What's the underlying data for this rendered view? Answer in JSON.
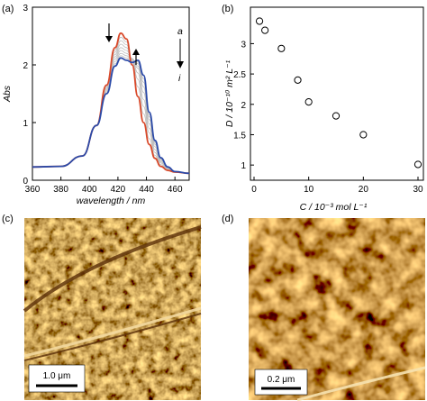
{
  "panel_labels": {
    "a": "(a)",
    "b": "(b)",
    "c": "(c)",
    "d": "(d)"
  },
  "chart_data": [
    {
      "panel": "(a)",
      "type": "line",
      "xlabel": "wavelength / nm",
      "ylabel": "Abs",
      "xlim": [
        360,
        470
      ],
      "ylim": [
        0,
        3
      ],
      "xticks": [
        360,
        380,
        400,
        420,
        440,
        460
      ],
      "yticks": [
        0,
        1,
        2,
        3
      ],
      "grid": false,
      "annotations": {
        "start": "a",
        "end": "i"
      },
      "series": [
        {
          "color": "#d94a2b",
          "x": [
            360,
            380,
            395,
            405,
            412,
            418,
            422,
            426,
            430,
            434,
            438,
            442,
            446,
            450,
            455,
            460,
            470
          ],
          "values": [
            0.23,
            0.24,
            0.42,
            0.95,
            1.65,
            2.3,
            2.55,
            2.45,
            2.0,
            1.45,
            1.0,
            0.62,
            0.38,
            0.24,
            0.17,
            0.14,
            0.12
          ]
        },
        {
          "color": "#bdbdbd",
          "x": [
            360,
            380,
            395,
            405,
            412,
            418,
            422,
            426,
            430,
            434,
            438,
            442,
            446,
            450,
            455,
            460,
            470
          ],
          "values": [
            0.23,
            0.24,
            0.42,
            0.95,
            1.63,
            2.26,
            2.48,
            2.4,
            2.05,
            1.62,
            1.15,
            0.72,
            0.43,
            0.27,
            0.18,
            0.14,
            0.12
          ]
        },
        {
          "color": "#bdbdbd",
          "x": [
            360,
            380,
            395,
            405,
            412,
            418,
            422,
            426,
            430,
            434,
            438,
            442,
            446,
            450,
            455,
            460,
            470
          ],
          "values": [
            0.23,
            0.24,
            0.42,
            0.95,
            1.61,
            2.22,
            2.42,
            2.35,
            2.08,
            1.75,
            1.28,
            0.82,
            0.48,
            0.3,
            0.19,
            0.15,
            0.12
          ]
        },
        {
          "color": "#bdbdbd",
          "x": [
            360,
            380,
            395,
            405,
            412,
            418,
            422,
            426,
            430,
            434,
            438,
            442,
            446,
            450,
            455,
            460,
            470
          ],
          "values": [
            0.23,
            0.24,
            0.42,
            0.95,
            1.59,
            2.18,
            2.36,
            2.3,
            2.1,
            1.86,
            1.4,
            0.9,
            0.53,
            0.32,
            0.2,
            0.15,
            0.12
          ]
        },
        {
          "color": "#bdbdbd",
          "x": [
            360,
            380,
            395,
            405,
            412,
            418,
            422,
            426,
            430,
            434,
            438,
            442,
            446,
            450,
            455,
            460,
            470
          ],
          "values": [
            0.23,
            0.24,
            0.42,
            0.95,
            1.57,
            2.14,
            2.3,
            2.25,
            2.11,
            1.94,
            1.52,
            0.98,
            0.58,
            0.34,
            0.21,
            0.15,
            0.12
          ]
        },
        {
          "color": "#bdbdbd",
          "x": [
            360,
            380,
            395,
            405,
            412,
            418,
            422,
            426,
            430,
            434,
            438,
            442,
            446,
            450,
            455,
            460,
            470
          ],
          "values": [
            0.23,
            0.24,
            0.42,
            0.95,
            1.55,
            2.1,
            2.25,
            2.2,
            2.1,
            1.98,
            1.62,
            1.05,
            0.62,
            0.36,
            0.22,
            0.15,
            0.12
          ]
        },
        {
          "color": "#bdbdbd",
          "x": [
            360,
            380,
            395,
            405,
            412,
            418,
            422,
            426,
            430,
            434,
            438,
            442,
            446,
            450,
            455,
            460,
            470
          ],
          "values": [
            0.23,
            0.24,
            0.42,
            0.95,
            1.53,
            2.06,
            2.2,
            2.16,
            2.08,
            2.02,
            1.7,
            1.1,
            0.65,
            0.37,
            0.22,
            0.15,
            0.12
          ]
        },
        {
          "color": "#bdbdbd",
          "x": [
            360,
            380,
            395,
            405,
            412,
            418,
            422,
            426,
            430,
            434,
            438,
            442,
            446,
            450,
            455,
            460,
            470
          ],
          "values": [
            0.23,
            0.24,
            0.42,
            0.95,
            1.51,
            2.02,
            2.16,
            2.12,
            2.06,
            2.05,
            1.76,
            1.14,
            0.67,
            0.38,
            0.23,
            0.15,
            0.12
          ]
        },
        {
          "color": "#2b4aa8",
          "x": [
            360,
            380,
            395,
            405,
            412,
            418,
            422,
            426,
            430,
            434,
            438,
            442,
            446,
            450,
            455,
            460,
            470
          ],
          "values": [
            0.23,
            0.24,
            0.42,
            0.95,
            1.5,
            1.98,
            2.12,
            2.08,
            2.04,
            2.08,
            1.82,
            1.18,
            0.69,
            0.39,
            0.23,
            0.15,
            0.12
          ]
        }
      ]
    },
    {
      "panel": "(b)",
      "type": "scatter",
      "xlabel": "C / 10⁻³ mol L⁻¹",
      "ylabel": "D / 10⁻¹⁰ m² L⁻¹",
      "xlim": [
        0,
        30
      ],
      "ylim": [
        0.75,
        3.6
      ],
      "xticks": [
        0,
        10,
        20,
        30
      ],
      "yticks": [
        1,
        1.5,
        2,
        2.5,
        3
      ],
      "grid": false,
      "x": [
        1,
        2,
        5,
        8,
        10,
        15,
        20,
        30
      ],
      "values": [
        3.37,
        3.22,
        2.92,
        2.4,
        2.04,
        1.81,
        1.5,
        1.01
      ]
    }
  ],
  "images": {
    "c": {
      "scale_label": "1.0 μm"
    },
    "d": {
      "scale_label": "0.2 μm"
    }
  }
}
